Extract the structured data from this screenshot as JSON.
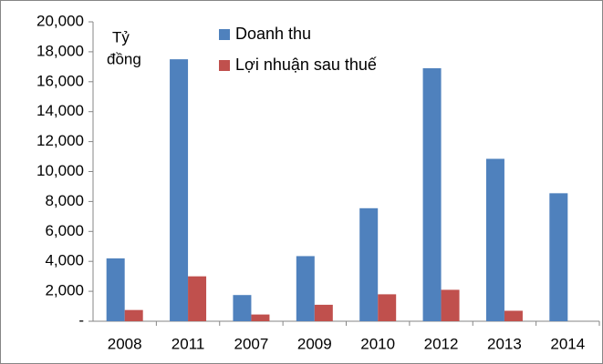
{
  "chart_data": {
    "type": "bar",
    "y_label": [
      "Tỷ",
      "đồng"
    ],
    "categories": [
      "2008",
      "2011",
      "2007",
      "2009",
      "2010",
      "2012",
      "2013",
      "2014"
    ],
    "series": [
      {
        "name": "Doanh thu",
        "color": "#4f81bd",
        "values": [
          4200,
          17500,
          1750,
          4350,
          7550,
          16900,
          10850,
          8550
        ]
      },
      {
        "name": "Lợi nhuận sau thuế",
        "color": "#c0504d",
        "values": [
          750,
          3000,
          450,
          1100,
          1800,
          2100,
          700,
          null
        ]
      }
    ],
    "ylim": [
      0,
      20000
    ],
    "yticks": [
      {
        "value": 0,
        "label": "-"
      },
      {
        "value": 2000,
        "label": "2,000"
      },
      {
        "value": 4000,
        "label": "4,000"
      },
      {
        "value": 6000,
        "label": "6,000"
      },
      {
        "value": 8000,
        "label": "8,000"
      },
      {
        "value": 10000,
        "label": "10,000"
      },
      {
        "value": 12000,
        "label": "12,000"
      },
      {
        "value": 14000,
        "label": "14,000"
      },
      {
        "value": 16000,
        "label": "16,000"
      },
      {
        "value": 18000,
        "label": "18,000"
      },
      {
        "value": 20000,
        "label": "20,000"
      }
    ],
    "grid": false
  }
}
